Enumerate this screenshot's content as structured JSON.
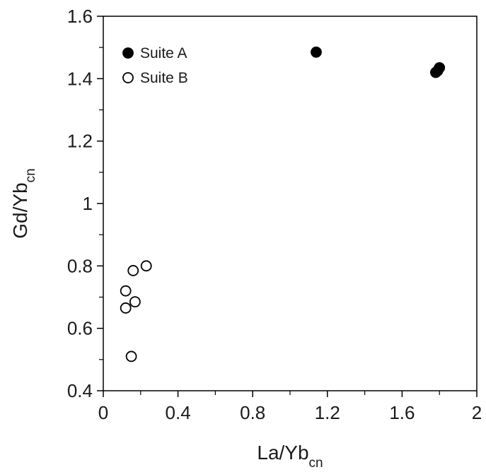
{
  "chart_data": {
    "type": "scatter",
    "title": "",
    "xlabel": {
      "main": "La/Yb",
      "sub": "cn"
    },
    "ylabel": {
      "main": "Gd/Yb",
      "sub": "cn"
    },
    "xlim": [
      0,
      2
    ],
    "ylim": [
      0.4,
      1.6
    ],
    "x_ticks": [
      0,
      0.4,
      0.8,
      1.2,
      1.6,
      2
    ],
    "x_tick_labels": [
      "0",
      "0.4",
      "0.8",
      "1.2",
      "1.6",
      "2"
    ],
    "y_ticks": [
      0.4,
      0.6,
      0.8,
      1,
      1.2,
      1.4,
      1.6
    ],
    "y_tick_labels": [
      "0.4",
      "0.6",
      "0.8",
      "1",
      "1.2",
      "1.4",
      "1.6"
    ],
    "grid": false,
    "legend_position": "top-left",
    "series": [
      {
        "name": "Suite A",
        "marker": "filled-circle",
        "color": "#000000",
        "points": [
          {
            "x": 1.14,
            "y": 1.485
          },
          {
            "x": 1.78,
            "y": 1.42
          },
          {
            "x": 1.79,
            "y": 1.425
          },
          {
            "x": 1.8,
            "y": 1.435
          }
        ]
      },
      {
        "name": "Suite B",
        "marker": "open-circle",
        "color": "#000000",
        "points": [
          {
            "x": 0.23,
            "y": 0.8
          },
          {
            "x": 0.16,
            "y": 0.785
          },
          {
            "x": 0.12,
            "y": 0.72
          },
          {
            "x": 0.17,
            "y": 0.685
          },
          {
            "x": 0.12,
            "y": 0.665
          },
          {
            "x": 0.15,
            "y": 0.51
          }
        ]
      }
    ]
  }
}
